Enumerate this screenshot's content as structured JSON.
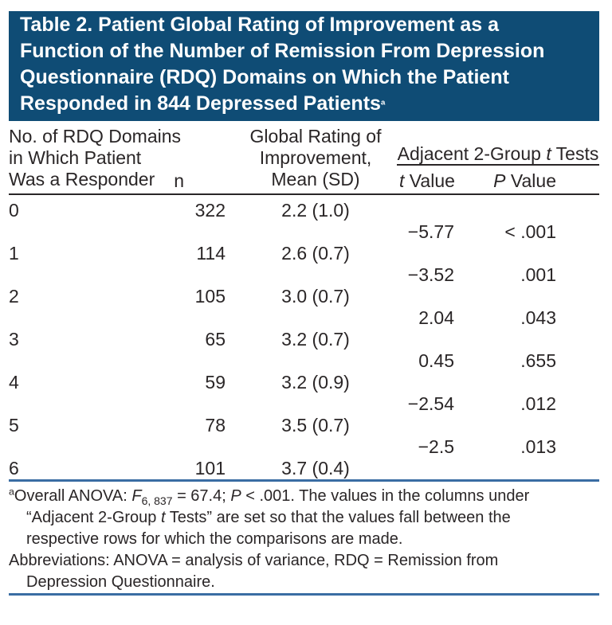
{
  "colors": {
    "header_bg": "#0f4c75",
    "rule_blue": "#3a6da3",
    "text": "#2a2627"
  },
  "title": {
    "text": "Table 2. Patient Global Rating of Improvement as a\nFunction of the Number of Remission From Depression\nQuestionnaire (RDQ) Domains on Which the Patient\nResponded in 844 Depressed Patients",
    "sup": "a"
  },
  "table": {
    "headers": {
      "col1": "No. of RDQ Domains\nin Which Patient\nWas a Responder",
      "col2": "n",
      "col3": "Global Rating of\nImprovement,\nMean (SD)",
      "spanner": {
        "pre": "Adjacent 2-Group ",
        "italic": "t",
        "post": " Tests"
      },
      "t_value": {
        "italic": "t",
        "rest": " Value"
      },
      "p_value": {
        "italic": "P",
        "rest": " Value"
      }
    },
    "rows": [
      {
        "domains": "0",
        "n": "322",
        "mean_sd": "2.2 (1.0)"
      },
      {
        "t": "−5.77",
        "p": "< .001"
      },
      {
        "domains": "1",
        "n": "114",
        "mean_sd": "2.6 (0.7)"
      },
      {
        "t": "−3.52",
        "p": ".001"
      },
      {
        "domains": "2",
        "n": "105",
        "mean_sd": "3.0 (0.7)"
      },
      {
        "t": "2.04",
        "p": ".043"
      },
      {
        "domains": "3",
        "n": "65",
        "mean_sd": "3.2 (0.7)"
      },
      {
        "t": "0.45",
        "p": ".655"
      },
      {
        "domains": "4",
        "n": "59",
        "mean_sd": "3.2 (0.9)"
      },
      {
        "t": "−2.54",
        "p": ".012"
      },
      {
        "domains": "5",
        "n": "78",
        "mean_sd": "3.5 (0.7)"
      },
      {
        "t": "−2.5",
        "p": ".013"
      },
      {
        "domains": "6",
        "n": "101",
        "mean_sd": "3.7 (0.4)"
      }
    ]
  },
  "footnotes": {
    "a": {
      "sup": "a",
      "seg1": "Overall ANOVA: ",
      "f_italic": "F",
      "f_sub": "6, 837",
      "seg2": " = 67.4; ",
      "p_italic": "P",
      "seg3": " < .001. The values in the columns under",
      "seg4": "“Adjacent 2-Group ",
      "t_italic": "t",
      "seg5": " Tests” are set so that the values fall between the",
      "seg6": "respective rows for which the comparisons are made."
    },
    "abbrev": {
      "line1": "Abbreviations: ANOVA = analysis of variance, RDQ = Remission from",
      "line2": "Depression Questionnaire."
    }
  }
}
